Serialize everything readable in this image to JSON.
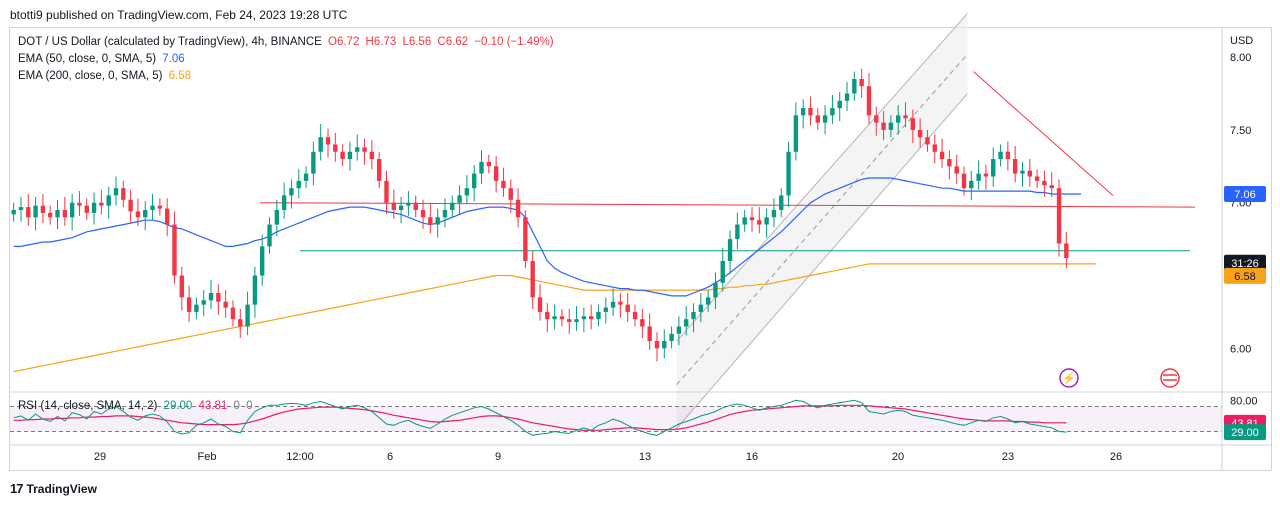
{
  "publish_line": "btotti9 published on TradingView.com, Feb 24, 2023 19:28 UTC",
  "legend": {
    "symbol_line": {
      "label": "DOT / US Dollar (calculated by TradingView), 4h, BINANCE",
      "o": "O6.72",
      "h": "H6.73",
      "l": "L6.56",
      "c": "C6.62",
      "change": "−0.10 (−1.49%)"
    },
    "ema50": {
      "label": "EMA (50, close, 0, SMA, 5)",
      "value": "7.06",
      "color": "#2962ff"
    },
    "ema200": {
      "label": "EMA (200, close, 0, SMA, 5)",
      "value": "6.58",
      "color": "#f7a21b"
    },
    "rsi": {
      "label": "RSI (14, close, SMA, 14, 2)",
      "value1": "29.00",
      "value2": "43.81",
      "value3": "0",
      "value4": "0"
    }
  },
  "price_axis": {
    "currency": "USD",
    "ticks": [
      "8.00",
      "7.50",
      "7.00",
      "6.50",
      "6.00"
    ],
    "tags": [
      {
        "text": "7.06",
        "bg": "#2962ff",
        "fg": "#ffffff"
      },
      {
        "text": "31:26",
        "bg": "#131722",
        "fg": "#ffffff"
      },
      {
        "text": "6.58",
        "bg": "#f7a21b",
        "fg": "#131722"
      }
    ]
  },
  "rsi_axis": {
    "ticks": [
      "80.00"
    ],
    "tags": [
      {
        "text": "43.81",
        "bg": "#e91e63",
        "fg": "#ffffff"
      },
      {
        "text": "29.00",
        "bg": "#089981",
        "fg": "#ffffff"
      }
    ]
  },
  "time_axis": [
    "29",
    "Feb",
    "12:00",
    "6",
    "9",
    "13",
    "16",
    "20",
    "23",
    "26"
  ],
  "branding": "TradingView",
  "colors": {
    "up": "#089981",
    "down": "#f23645",
    "ema50": "#2962ff",
    "ema200": "#f7a21b",
    "rsi": "#089981",
    "rsi_ma": "#e91e63",
    "trendline": "#f23645",
    "support": "#089981"
  },
  "chart_data": {
    "type": "candlestick",
    "symbol": "DOT / US Dollar",
    "interval": "4h",
    "exchange": "BINANCE",
    "ohlc_last": {
      "open": 6.72,
      "high": 6.73,
      "low": 6.56,
      "close": 6.62,
      "change": -0.1,
      "change_pct": -1.49
    },
    "y_axis": {
      "range": [
        5.7,
        8.2
      ],
      "ticks": [
        8.0,
        7.5,
        7.0,
        6.5,
        6.0
      ]
    },
    "x_ticks": [
      "29",
      "Feb",
      "12:00",
      "6",
      "9",
      "13",
      "16",
      "20",
      "23",
      "26"
    ],
    "closes": [
      6.95,
      6.97,
      6.9,
      6.98,
      6.93,
      6.9,
      6.95,
      6.9,
      7.0,
      6.98,
      6.93,
      7.0,
      6.98,
      7.05,
      7.1,
      7.02,
      6.94,
      6.9,
      6.95,
      6.98,
      6.96,
      6.85,
      6.5,
      6.35,
      6.25,
      6.3,
      6.33,
      6.38,
      6.32,
      6.28,
      6.2,
      6.15,
      6.3,
      6.5,
      6.7,
      6.85,
      6.95,
      7.05,
      7.1,
      7.15,
      7.2,
      7.35,
      7.45,
      7.4,
      7.35,
      7.3,
      7.35,
      7.38,
      7.35,
      7.3,
      7.15,
      7.0,
      6.95,
      6.98,
      7.0,
      6.95,
      6.9,
      6.85,
      6.9,
      6.95,
      7.0,
      7.05,
      7.1,
      7.2,
      7.28,
      7.25,
      7.15,
      7.1,
      7.02,
      6.9,
      6.6,
      6.35,
      6.25,
      6.2,
      6.22,
      6.2,
      6.18,
      6.2,
      6.22,
      6.2,
      6.25,
      6.28,
      6.32,
      6.3,
      6.25,
      6.2,
      6.15,
      6.05,
      6.0,
      6.05,
      6.1,
      6.15,
      6.2,
      6.25,
      6.3,
      6.35,
      6.45,
      6.6,
      6.75,
      6.85,
      6.9,
      6.88,
      6.85,
      6.9,
      6.95,
      7.05,
      7.35,
      7.6,
      7.65,
      7.6,
      7.55,
      7.6,
      7.65,
      7.7,
      7.75,
      7.85,
      7.8,
      7.6,
      7.55,
      7.5,
      7.55,
      7.6,
      7.58,
      7.5,
      7.45,
      7.4,
      7.35,
      7.3,
      7.25,
      7.2,
      7.1,
      7.15,
      7.2,
      7.18,
      7.3,
      7.35,
      7.3,
      7.2,
      7.22,
      7.18,
      7.15,
      7.12,
      7.1,
      6.72,
      6.62
    ],
    "ema50": [
      6.7,
      6.7,
      6.71,
      6.72,
      6.73,
      6.73,
      6.74,
      6.75,
      6.76,
      6.78,
      6.8,
      6.81,
      6.82,
      6.83,
      6.84,
      6.85,
      6.86,
      6.87,
      6.88,
      6.88,
      6.87,
      6.85,
      6.83,
      6.82,
      6.8,
      6.78,
      6.76,
      6.74,
      6.72,
      6.7,
      6.7,
      6.71,
      6.72,
      6.74,
      6.75,
      6.77,
      6.8,
      6.82,
      6.84,
      6.86,
      6.88,
      6.9,
      6.92,
      6.94,
      6.95,
      6.96,
      6.97,
      6.97,
      6.97,
      6.96,
      6.95,
      6.94,
      6.93,
      6.92,
      6.9,
      6.88,
      6.86,
      6.85,
      6.86,
      6.88,
      6.9,
      6.92,
      6.94,
      6.95,
      6.96,
      6.97,
      6.97,
      6.97,
      6.96,
      6.95,
      6.9,
      6.8,
      6.7,
      6.6,
      6.55,
      6.52,
      6.5,
      6.48,
      6.46,
      6.45,
      6.44,
      6.43,
      6.42,
      6.41,
      6.41,
      6.4,
      6.4,
      6.39,
      6.38,
      6.37,
      6.36,
      6.36,
      6.36,
      6.38,
      6.4,
      6.42,
      6.45,
      6.48,
      6.52,
      6.56,
      6.6,
      6.64,
      6.68,
      6.72,
      6.76,
      6.8,
      6.85,
      6.9,
      6.95,
      7.0,
      7.03,
      7.06,
      7.08,
      7.1,
      7.12,
      7.14,
      7.16,
      7.17,
      7.17,
      7.17,
      7.17,
      7.16,
      7.15,
      7.14,
      7.13,
      7.12,
      7.11,
      7.1,
      7.1,
      7.09,
      7.08,
      7.08,
      7.08,
      7.08,
      7.08,
      7.08,
      7.08,
      7.08,
      7.08,
      7.08,
      7.07,
      7.07,
      7.06,
      7.06,
      7.06,
      7.06,
      7.06
    ],
    "ema200": [
      5.84,
      5.85,
      5.86,
      5.87,
      5.88,
      5.89,
      5.9,
      5.91,
      5.92,
      5.93,
      5.94,
      5.95,
      5.96,
      5.97,
      5.98,
      5.99,
      6.0,
      6.01,
      6.02,
      6.03,
      6.04,
      6.05,
      6.06,
      6.07,
      6.08,
      6.09,
      6.1,
      6.11,
      6.12,
      6.13,
      6.14,
      6.15,
      6.16,
      6.17,
      6.18,
      6.19,
      6.2,
      6.21,
      6.22,
      6.23,
      6.24,
      6.25,
      6.26,
      6.27,
      6.28,
      6.29,
      6.3,
      6.31,
      6.32,
      6.33,
      6.34,
      6.35,
      6.36,
      6.37,
      6.38,
      6.39,
      6.4,
      6.41,
      6.42,
      6.43,
      6.44,
      6.45,
      6.46,
      6.47,
      6.48,
      6.49,
      6.5,
      6.5,
      6.5,
      6.49,
      6.48,
      6.47,
      6.46,
      6.45,
      6.44,
      6.43,
      6.42,
      6.41,
      6.4,
      6.4,
      6.4,
      6.4,
      6.4,
      6.4,
      6.4,
      6.4,
      6.4,
      6.4,
      6.4,
      6.4,
      6.4,
      6.4,
      6.4,
      6.4,
      6.4,
      6.4,
      6.41,
      6.41,
      6.42,
      6.42,
      6.43,
      6.43,
      6.44,
      6.44,
      6.45,
      6.46,
      6.47,
      6.48,
      6.49,
      6.5,
      6.51,
      6.52,
      6.53,
      6.54,
      6.55,
      6.56,
      6.57,
      6.58,
      6.58,
      6.58,
      6.58,
      6.58,
      6.58,
      6.58,
      6.58,
      6.58,
      6.58,
      6.58,
      6.58,
      6.58,
      6.58,
      6.58,
      6.58,
      6.58,
      6.58,
      6.58,
      6.58,
      6.58,
      6.58,
      6.58,
      6.58,
      6.58,
      6.58,
      6.58,
      6.58,
      6.58,
      6.58,
      6.58,
      6.58
    ],
    "rsi": {
      "y_range": [
        10,
        90
      ],
      "ticks": [
        80
      ],
      "overbought": 70,
      "oversold": 30,
      "values": [
        52,
        55,
        48,
        58,
        50,
        46,
        54,
        47,
        60,
        57,
        50,
        62,
        58,
        66,
        70,
        62,
        53,
        48,
        55,
        58,
        55,
        45,
        30,
        26,
        28,
        40,
        44,
        50,
        42,
        38,
        30,
        28,
        48,
        62,
        68,
        72,
        72,
        74,
        75,
        74,
        72,
        76,
        78,
        74,
        70,
        66,
        70,
        72,
        68,
        62,
        52,
        42,
        40,
        45,
        48,
        42,
        38,
        35,
        42,
        50,
        56,
        60,
        64,
        68,
        70,
        66,
        60,
        54,
        48,
        40,
        30,
        24,
        26,
        27,
        30,
        28,
        27,
        32,
        36,
        32,
        40,
        44,
        50,
        46,
        40,
        34,
        30,
        26,
        24,
        30,
        36,
        42,
        46,
        50,
        55,
        58,
        62,
        68,
        72,
        74,
        72,
        68,
        64,
        68,
        70,
        72,
        76,
        80,
        78,
        72,
        68,
        72,
        74,
        76,
        78,
        80,
        76,
        62,
        60,
        58,
        62,
        64,
        62,
        56,
        54,
        52,
        50,
        48,
        45,
        42,
        40,
        44,
        48,
        46,
        52,
        54,
        50,
        44,
        46,
        42,
        40,
        38,
        36,
        30,
        29
      ],
      "ma": [
        48,
        48,
        49,
        49,
        50,
        50,
        51,
        51,
        52,
        52,
        53,
        53,
        54,
        54,
        55,
        55,
        55,
        54,
        53,
        52,
        50,
        48,
        46,
        44,
        43,
        42,
        41,
        41,
        41,
        41,
        41,
        42,
        44,
        47,
        50,
        54,
        58,
        61,
        64,
        66,
        67,
        68,
        69,
        69,
        69,
        68,
        67,
        66,
        65,
        63,
        61,
        59,
        56,
        54,
        52,
        50,
        48,
        46,
        45,
        46,
        47,
        48,
        50,
        52,
        54,
        55,
        55,
        54,
        52,
        50,
        47,
        44,
        42,
        40,
        38,
        36,
        34,
        33,
        32,
        32,
        32,
        33,
        34,
        35,
        36,
        36,
        35,
        34,
        33,
        33,
        33,
        34,
        36,
        39,
        42,
        45,
        49,
        53,
        57,
        60,
        62,
        64,
        65,
        66,
        67,
        68,
        69,
        70,
        71,
        71,
        71,
        71,
        71,
        72,
        72,
        72,
        72,
        71,
        70,
        69,
        68,
        67,
        66,
        64,
        62,
        60,
        58,
        56,
        54,
        52,
        50,
        49,
        48,
        47,
        47,
        47,
        47,
        46,
        46,
        45,
        45,
        44,
        44,
        44,
        43.81
      ]
    },
    "annotations": {
      "resistance_line": [
        [
          0,
          7.0
        ],
        [
          1,
          6.97
        ]
      ],
      "support_line": 6.67,
      "downtrend_line": [
        [
          0.795,
          7.9
        ],
        [
          0.91,
          7.05
        ]
      ],
      "channel_upper": [
        [
          0.55,
          6.05
        ],
        [
          0.79,
          8.3
        ]
      ],
      "channel_lower": [
        [
          0.55,
          5.45
        ],
        [
          0.79,
          7.75
        ]
      ],
      "channel_mid": [
        [
          0.55,
          5.75
        ],
        [
          0.79,
          8.02
        ]
      ]
    }
  }
}
